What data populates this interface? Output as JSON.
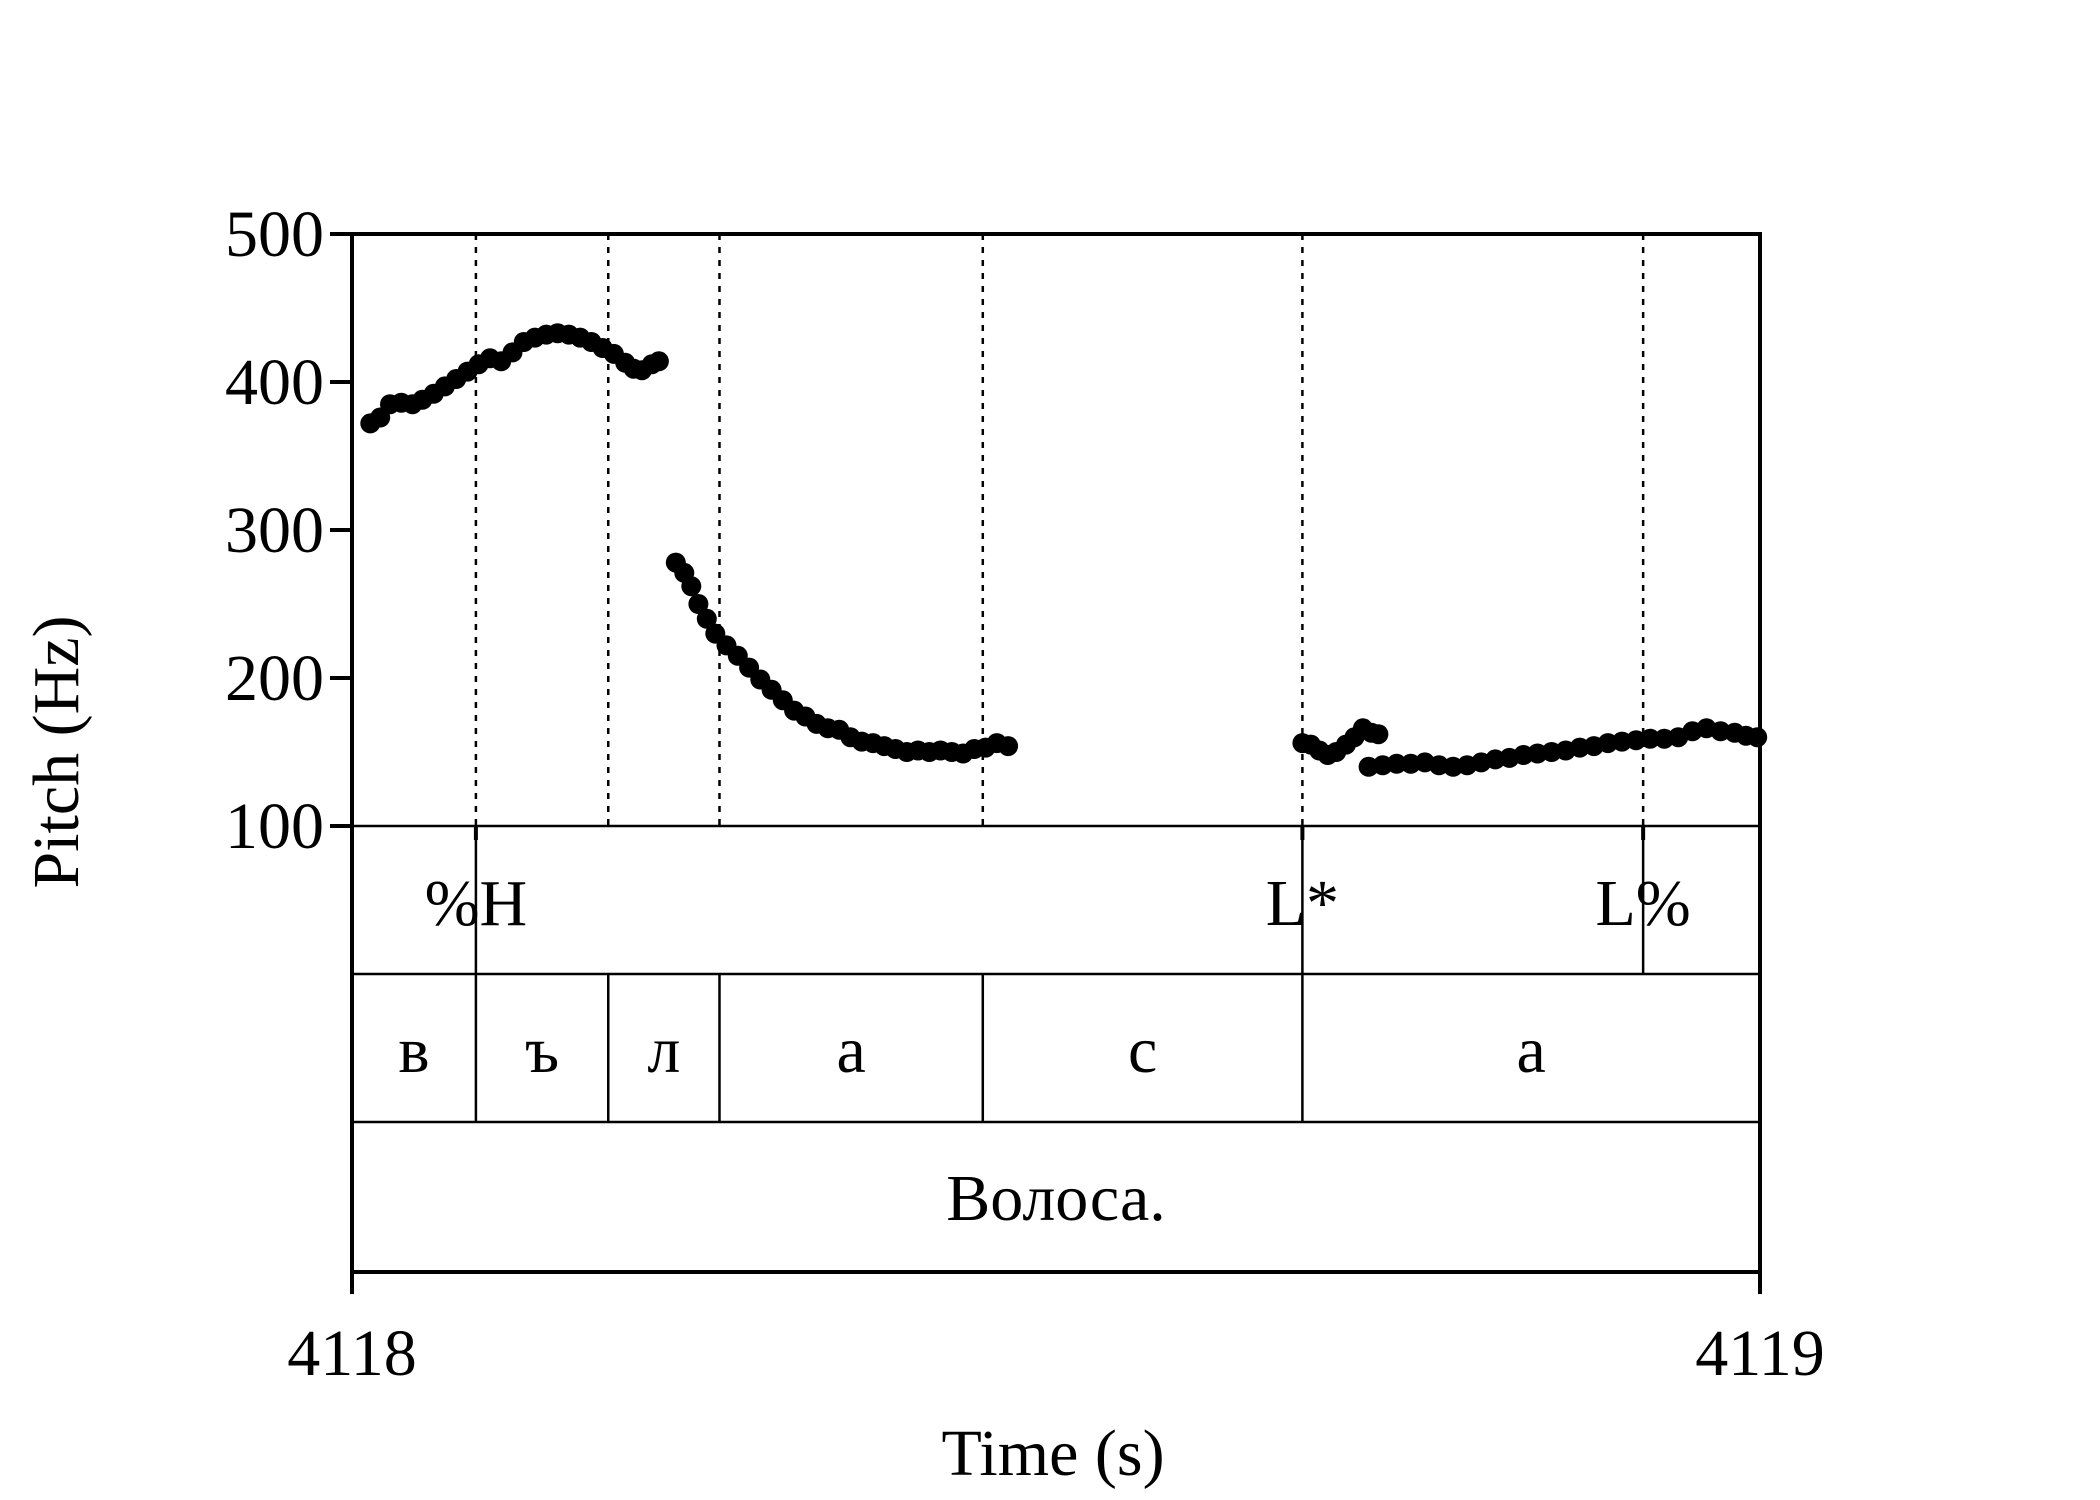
{
  "chart_data": {
    "type": "scatter",
    "title": "",
    "xlabel": "Time (s)",
    "ylabel": "Pitch (Hz)",
    "xlim": [
      4118,
      4119
    ],
    "ylim": [
      100,
      500
    ],
    "x_ticks": [
      "4118",
      "4119"
    ],
    "y_ticks": [
      "100",
      "200",
      "300",
      "400",
      "500"
    ],
    "grid": false,
    "boundaries": [
      4118.088,
      4118.182,
      4118.261,
      4118.448,
      4118.675,
      4118.917
    ],
    "series": [
      {
        "points": [
          [
            4118.013,
            372
          ],
          [
            4118.02,
            376
          ],
          [
            4118.027,
            385
          ],
          [
            4118.035,
            386
          ],
          [
            4118.043,
            385
          ],
          [
            4118.05,
            388
          ],
          [
            4118.058,
            392
          ],
          [
            4118.066,
            397
          ],
          [
            4118.074,
            402
          ],
          [
            4118.082,
            407
          ],
          [
            4118.09,
            412
          ],
          [
            4118.098,
            416
          ],
          [
            4118.106,
            414
          ],
          [
            4118.114,
            420
          ],
          [
            4118.122,
            427
          ],
          [
            4118.13,
            430
          ],
          [
            4118.138,
            432
          ],
          [
            4118.146,
            433
          ],
          [
            4118.154,
            432
          ],
          [
            4118.162,
            430
          ],
          [
            4118.17,
            427
          ],
          [
            4118.178,
            423
          ],
          [
            4118.186,
            419
          ],
          [
            4118.194,
            413
          ],
          [
            4118.2,
            409
          ],
          [
            4118.206,
            408
          ],
          [
            4118.213,
            412
          ],
          [
            4118.218,
            414
          ]
        ]
      },
      {
        "points": [
          [
            4118.23,
            278
          ],
          [
            4118.236,
            271
          ],
          [
            4118.241,
            262
          ],
          [
            4118.246,
            250
          ],
          [
            4118.252,
            240
          ],
          [
            4118.258,
            230
          ],
          [
            4118.266,
            222
          ],
          [
            4118.274,
            215
          ],
          [
            4118.282,
            207
          ],
          [
            4118.29,
            199
          ],
          [
            4118.298,
            192
          ],
          [
            4118.306,
            185
          ],
          [
            4118.314,
            178
          ],
          [
            4118.322,
            174
          ],
          [
            4118.33,
            169
          ],
          [
            4118.338,
            166
          ],
          [
            4118.346,
            165
          ],
          [
            4118.354,
            160
          ],
          [
            4118.362,
            157
          ],
          [
            4118.37,
            156
          ],
          [
            4118.378,
            154
          ],
          [
            4118.386,
            152
          ],
          [
            4118.394,
            150
          ],
          [
            4118.402,
            151
          ],
          [
            4118.41,
            150
          ],
          [
            4118.418,
            151
          ],
          [
            4118.426,
            150
          ],
          [
            4118.434,
            149
          ],
          [
            4118.442,
            152
          ],
          [
            4118.45,
            153
          ],
          [
            4118.458,
            156
          ],
          [
            4118.466,
            154
          ]
        ]
      },
      {
        "points": [
          [
            4118.675,
            156
          ],
          [
            4118.681,
            155
          ],
          [
            4118.687,
            151
          ],
          [
            4118.693,
            148
          ],
          [
            4118.699,
            150
          ],
          [
            4118.706,
            155
          ],
          [
            4118.712,
            160
          ],
          [
            4118.718,
            166
          ],
          [
            4118.724,
            163
          ],
          [
            4118.729,
            162
          ]
        ]
      },
      {
        "points": [
          [
            4118.722,
            140
          ],
          [
            4118.732,
            141
          ],
          [
            4118.742,
            142
          ],
          [
            4118.752,
            142
          ],
          [
            4118.762,
            143
          ],
          [
            4118.772,
            141
          ],
          [
            4118.782,
            140
          ],
          [
            4118.792,
            141
          ],
          [
            4118.802,
            143
          ],
          [
            4118.812,
            145
          ],
          [
            4118.822,
            146
          ],
          [
            4118.832,
            148
          ],
          [
            4118.842,
            149
          ],
          [
            4118.852,
            150
          ],
          [
            4118.862,
            151
          ],
          [
            4118.872,
            153
          ],
          [
            4118.882,
            154
          ],
          [
            4118.892,
            156
          ],
          [
            4118.902,
            157
          ],
          [
            4118.912,
            158
          ],
          [
            4118.922,
            159
          ],
          [
            4118.932,
            159
          ],
          [
            4118.942,
            160
          ],
          [
            4118.952,
            164
          ],
          [
            4118.962,
            166
          ],
          [
            4118.972,
            164
          ],
          [
            4118.982,
            163
          ],
          [
            4118.99,
            161
          ],
          [
            4118.998,
            160
          ]
        ]
      }
    ],
    "tone_tier": [
      {
        "label": "%H",
        "time": 4118.088
      },
      {
        "label": "L*",
        "time": 4118.675
      },
      {
        "label": "L%",
        "time": 4118.917
      }
    ],
    "segment_tier": [
      {
        "label": "в",
        "start": 4118.0,
        "end": 4118.088
      },
      {
        "label": "ъ",
        "start": 4118.088,
        "end": 4118.182
      },
      {
        "label": "л",
        "start": 4118.182,
        "end": 4118.261
      },
      {
        "label": "а",
        "start": 4118.261,
        "end": 4118.448
      },
      {
        "label": "с",
        "start": 4118.448,
        "end": 4118.675
      },
      {
        "label": "а",
        "start": 4118.675,
        "end": 4119.0
      }
    ],
    "word_tier": [
      {
        "label": "Волоса.",
        "start": 4118.0,
        "end": 4119.0
      }
    ]
  }
}
